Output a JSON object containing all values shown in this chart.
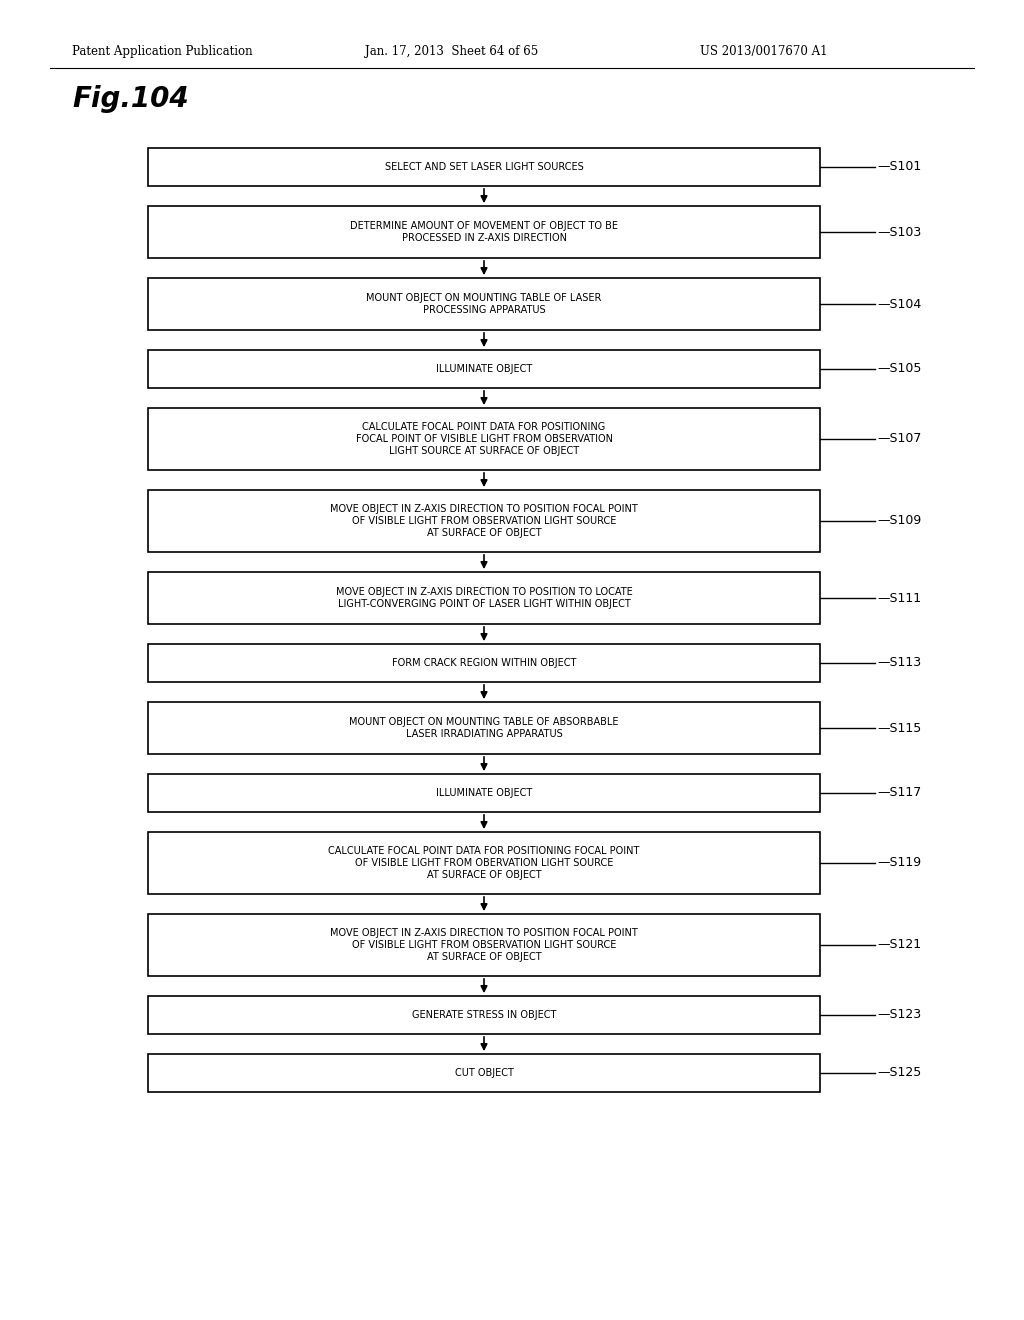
{
  "header_left": "Patent Application Publication",
  "header_mid": "Jan. 17, 2013  Sheet 64 of 65",
  "header_right": "US 2013/0017670 A1",
  "fig_label": "Fig.104",
  "background_color": "#ffffff",
  "steps": [
    {
      "id": "S101",
      "text": "SELECT AND SET LASER LIGHT SOURCES",
      "lines": 1
    },
    {
      "id": "S103",
      "text": "DETERMINE AMOUNT OF MOVEMENT OF OBJECT TO BE\nPROCESSED IN Z-AXIS DIRECTION",
      "lines": 2
    },
    {
      "id": "S104",
      "text": "MOUNT OBJECT ON MOUNTING TABLE OF LASER\nPROCESSING APPARATUS",
      "lines": 2
    },
    {
      "id": "S105",
      "text": "ILLUMINATE OBJECT",
      "lines": 1
    },
    {
      "id": "S107",
      "text": "CALCULATE FOCAL POINT DATA FOR POSITIONING\nFOCAL POINT OF VISIBLE LIGHT FROM OBSERVATION\nLIGHT SOURCE AT SURFACE OF OBJECT",
      "lines": 3
    },
    {
      "id": "S109",
      "text": "MOVE OBJECT IN Z-AXIS DIRECTION TO POSITION FOCAL POINT\nOF VISIBLE LIGHT FROM OBSERVATION LIGHT SOURCE\nAT SURFACE OF OBJECT",
      "lines": 3
    },
    {
      "id": "S111",
      "text": "MOVE OBJECT IN Z-AXIS DIRECTION TO POSITION TO LOCATE\nLIGHT-CONVERGING POINT OF LASER LIGHT WITHIN OBJECT",
      "lines": 2
    },
    {
      "id": "S113",
      "text": "FORM CRACK REGION WITHIN OBJECT",
      "lines": 1
    },
    {
      "id": "S115",
      "text": "MOUNT OBJECT ON MOUNTING TABLE OF ABSORBABLE\nLASER IRRADIATING APPARATUS",
      "lines": 2
    },
    {
      "id": "S117",
      "text": "ILLUMINATE OBJECT",
      "lines": 1
    },
    {
      "id": "S119",
      "text": "CALCULATE FOCAL POINT DATA FOR POSITIONING FOCAL POINT\nOF VISIBLE LIGHT FROM OBERVATION LIGHT SOURCE\nAT SURFACE OF OBJECT",
      "lines": 3
    },
    {
      "id": "S121",
      "text": "MOVE OBJECT IN Z-AXIS DIRECTION TO POSITION FOCAL POINT\nOF VISIBLE LIGHT FROM OBSERVATION LIGHT SOURCE\nAT SURFACE OF OBJECT",
      "lines": 3
    },
    {
      "id": "S123",
      "text": "GENERATE STRESS IN OBJECT",
      "lines": 1
    },
    {
      "id": "S125",
      "text": "CUT OBJECT",
      "lines": 1
    }
  ]
}
